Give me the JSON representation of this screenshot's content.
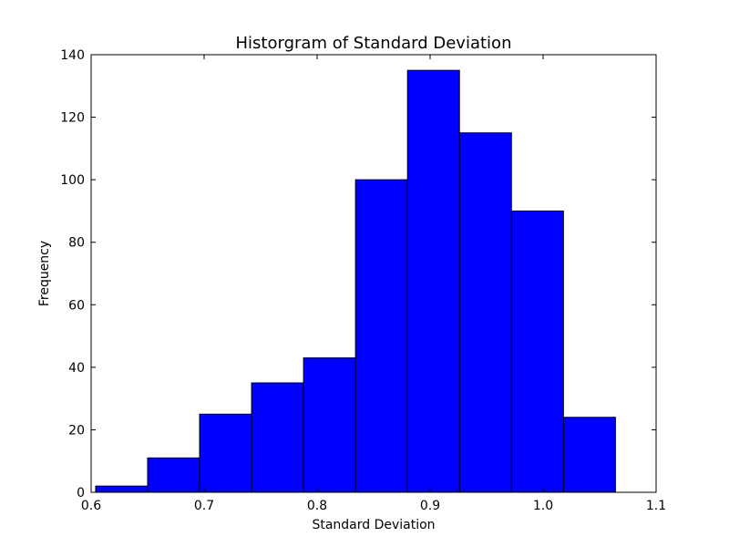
{
  "chart_data": {
    "type": "bar",
    "title": "Historgram of Standard Deviation",
    "xlabel": "Standard Deviation",
    "ylabel": "Frequency",
    "xlim": [
      0.6,
      1.1
    ],
    "ylim": [
      0,
      140
    ],
    "x_ticks": [
      0.6,
      0.7,
      0.8,
      0.9,
      1.0,
      1.1
    ],
    "x_tick_labels": [
      "0.6",
      "0.7",
      "0.8",
      "0.9",
      "1.0",
      "1.1"
    ],
    "y_ticks": [
      0,
      20,
      40,
      60,
      80,
      100,
      120,
      140
    ],
    "y_tick_labels": [
      "0",
      "20",
      "40",
      "60",
      "80",
      "100",
      "120",
      "140"
    ],
    "bins": [
      {
        "start": 0.604,
        "end": 0.65,
        "count": 2
      },
      {
        "start": 0.65,
        "end": 0.696,
        "count": 11
      },
      {
        "start": 0.696,
        "end": 0.742,
        "count": 25
      },
      {
        "start": 0.742,
        "end": 0.788,
        "count": 35
      },
      {
        "start": 0.788,
        "end": 0.834,
        "count": 43
      },
      {
        "start": 0.834,
        "end": 0.88,
        "count": 100
      },
      {
        "start": 0.88,
        "end": 0.926,
        "count": 135
      },
      {
        "start": 0.926,
        "end": 0.972,
        "count": 115
      },
      {
        "start": 0.972,
        "end": 1.018,
        "count": 90
      },
      {
        "start": 1.018,
        "end": 1.064,
        "count": 24
      }
    ],
    "bar_color": "#0000ff",
    "edge_color": "#000000",
    "grid": false,
    "legend": "none"
  }
}
